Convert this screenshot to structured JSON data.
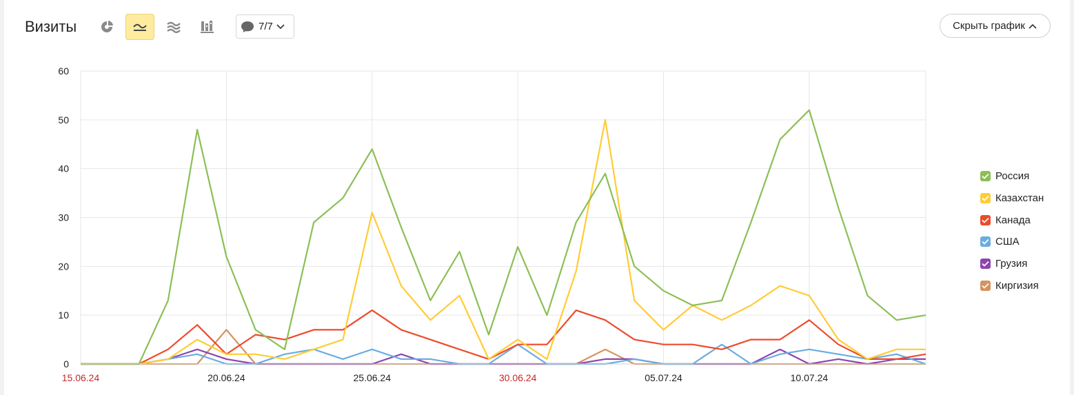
{
  "header": {
    "title": "Визиты",
    "notes_label": "7/7",
    "hide_label": "Скрыть график"
  },
  "toolbar_icons": [
    {
      "name": "pie-chart-icon",
      "active": false
    },
    {
      "name": "line-chart-icon",
      "active": true
    },
    {
      "name": "stacked-area-icon",
      "active": false
    },
    {
      "name": "column-chart-icon",
      "active": false
    }
  ],
  "chart_data": {
    "type": "line",
    "ylim": [
      0,
      60
    ],
    "yticks": [
      0,
      10,
      20,
      30,
      40,
      50,
      60
    ],
    "grid": true,
    "legend": "right",
    "x": [
      "15.06.24",
      "16.06.24",
      "17.06.24",
      "18.06.24",
      "19.06.24",
      "20.06.24",
      "21.06.24",
      "22.06.24",
      "23.06.24",
      "24.06.24",
      "25.06.24",
      "26.06.24",
      "27.06.24",
      "28.06.24",
      "29.06.24",
      "30.06.24",
      "01.07.24",
      "02.07.24",
      "03.07.24",
      "04.07.24",
      "05.07.24",
      "06.07.24",
      "07.07.24",
      "08.07.24",
      "09.07.24",
      "10.07.24",
      "11.07.24",
      "12.07.24",
      "13.07.24",
      "14.07.24"
    ],
    "xticks": [
      {
        "label": "15.06.24",
        "index": 0,
        "weekend": true
      },
      {
        "label": "20.06.24",
        "index": 5,
        "weekend": false
      },
      {
        "label": "25.06.24",
        "index": 10,
        "weekend": false
      },
      {
        "label": "30.06.24",
        "index": 15,
        "weekend": true
      },
      {
        "label": "05.07.24",
        "index": 20,
        "weekend": false
      },
      {
        "label": "10.07.24",
        "index": 25,
        "weekend": false
      }
    ],
    "series": [
      {
        "name": "Россия",
        "color": "#8bbf55",
        "values": [
          0,
          0,
          0,
          13,
          48,
          22,
          7,
          3,
          29,
          34,
          44,
          28,
          13,
          23,
          6,
          24,
          10,
          29,
          39,
          20,
          15,
          12,
          13,
          29,
          46,
          52,
          32,
          14,
          9,
          10
        ]
      },
      {
        "name": "Казахстан",
        "color": "#ffcc33",
        "values": [
          0,
          0,
          0,
          1,
          5,
          2,
          2,
          1,
          3,
          5,
          31,
          16,
          9,
          14,
          1,
          5,
          1,
          19,
          50,
          13,
          7,
          12,
          9,
          12,
          16,
          14,
          5,
          1,
          3,
          3
        ]
      },
      {
        "name": "Канада",
        "color": "#ee4a2c",
        "values": [
          0,
          0,
          0,
          3,
          8,
          2,
          6,
          5,
          7,
          7,
          11,
          7,
          5,
          3,
          1,
          4,
          4,
          11,
          9,
          5,
          4,
          4,
          3,
          5,
          5,
          9,
          4,
          1,
          1,
          2
        ]
      },
      {
        "name": "США",
        "color": "#6aace0",
        "values": [
          0,
          0,
          0,
          1,
          2,
          0,
          0,
          2,
          3,
          1,
          3,
          1,
          1,
          0,
          0,
          4,
          0,
          0,
          0,
          1,
          0,
          0,
          4,
          0,
          2,
          3,
          2,
          1,
          2,
          0
        ]
      },
      {
        "name": "Грузия",
        "color": "#8e44ad",
        "values": [
          0,
          0,
          0,
          1,
          3,
          1,
          0,
          0,
          0,
          0,
          0,
          2,
          0,
          0,
          0,
          0,
          0,
          0,
          1,
          1,
          0,
          0,
          0,
          0,
          3,
          0,
          1,
          0,
          1,
          1
        ]
      },
      {
        "name": "Киргизия",
        "color": "#d4935f",
        "values": [
          0,
          0,
          0,
          0,
          0,
          7,
          0,
          0,
          0,
          0,
          0,
          0,
          0,
          0,
          0,
          0,
          0,
          0,
          3,
          0,
          0,
          0,
          0,
          0,
          0,
          0,
          0,
          0,
          0,
          0
        ]
      }
    ]
  }
}
